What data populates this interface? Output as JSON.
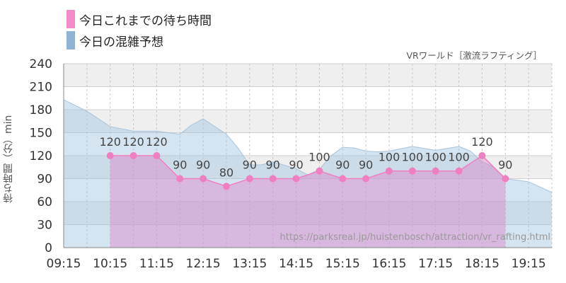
{
  "legend": [
    {
      "label": "今日これまでの待ち時間",
      "color": "#f28cc8"
    },
    {
      "label": "今日の混雑予想",
      "color": "#8fb4d4"
    }
  ],
  "attraction_label": "VRワールド［激流ラフティング］",
  "source_text": "https://parksreal.jp/huistenbosch/attraction/vr_rafting.html",
  "chart_data": {
    "type": "area",
    "ylabel": "待ち時間（分）min",
    "ylim": [
      0,
      240
    ],
    "yticks": [
      0,
      30,
      60,
      90,
      120,
      150,
      180,
      210,
      240
    ],
    "xlim": [
      "9:15",
      "19:45"
    ],
    "xticks": [
      "09:15",
      "10:15",
      "11:15",
      "12:15",
      "13:15",
      "14:15",
      "15:15",
      "16:15",
      "17:15",
      "18:15",
      "19:15"
    ],
    "grid": true,
    "series": [
      {
        "name": "今日これまでの待ち時間",
        "color": "#f28cc8",
        "x": [
          "10:15",
          "10:45",
          "11:15",
          "11:45",
          "12:15",
          "12:45",
          "13:15",
          "13:45",
          "14:15",
          "14:45",
          "15:15",
          "15:45",
          "16:15",
          "16:45",
          "17:15",
          "17:45",
          "18:15",
          "18:45"
        ],
        "values": [
          120,
          120,
          120,
          90,
          90,
          80,
          90,
          90,
          90,
          100,
          90,
          90,
          100,
          100,
          100,
          100,
          120,
          90
        ]
      },
      {
        "name": "今日の混雑予想",
        "color": "#8fb4d4",
        "x": [
          "9:15",
          "9:45",
          "10:15",
          "10:45",
          "11:15",
          "11:45",
          "12:00",
          "12:15",
          "12:45",
          "13:00",
          "13:15",
          "13:30",
          "13:45",
          "14:15",
          "14:30",
          "14:45",
          "15:00",
          "15:15",
          "15:30",
          "15:45",
          "16:00",
          "16:15",
          "16:45",
          "17:15",
          "17:45",
          "18:00",
          "18:15",
          "18:30",
          "18:45",
          "19:15",
          "19:45"
        ],
        "values": [
          193,
          178,
          158,
          152,
          152,
          148,
          160,
          168,
          148,
          130,
          108,
          108,
          112,
          103,
          95,
          102,
          120,
          131,
          130,
          126,
          125,
          126,
          132,
          127,
          132,
          126,
          112,
          105,
          90,
          86,
          72
        ]
      }
    ]
  }
}
